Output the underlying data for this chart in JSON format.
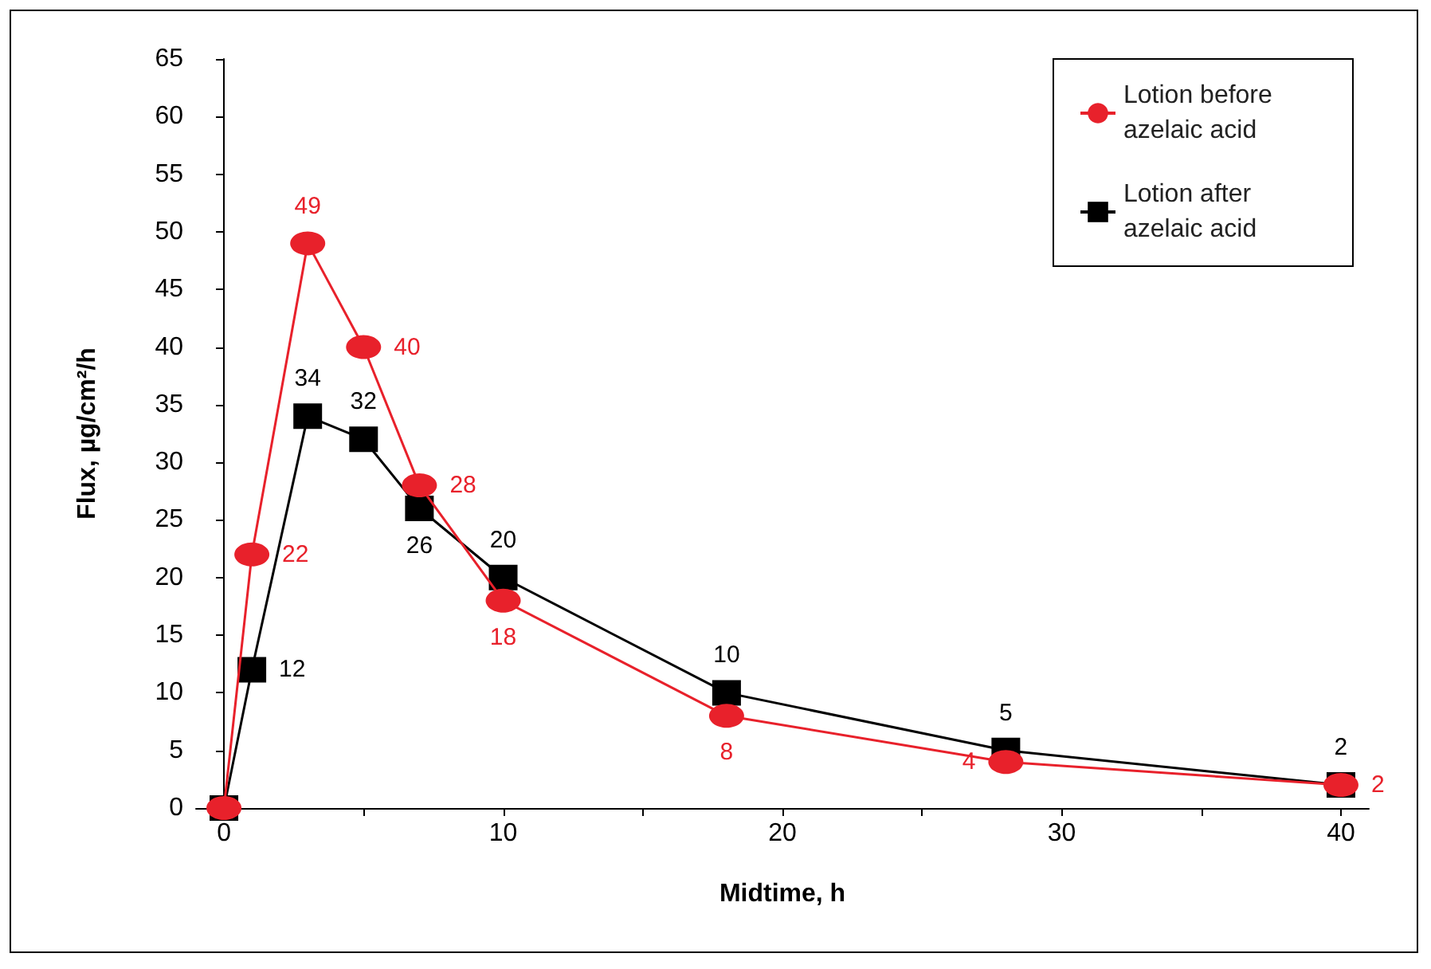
{
  "chart_data": {
    "type": "line",
    "xlabel": "Midtime, h",
    "ylabel": "Flux, µg/cm²/h",
    "xlim": [
      -1,
      41
    ],
    "xticks": [
      0,
      {
        "value": 5,
        "label": null
      },
      10,
      {
        "value": 15,
        "label": null
      },
      20,
      {
        "value": 25,
        "label": null
      },
      30,
      {
        "value": 35,
        "label": null
      },
      40
    ],
    "ylim": [
      0,
      65
    ],
    "yticks": [
      0,
      5,
      10,
      15,
      20,
      25,
      30,
      35,
      40,
      45,
      50,
      55,
      60,
      65
    ],
    "grid": false,
    "legend": "top right",
    "line_style": "solid",
    "series": [
      {
        "name": "Lotion before azelaic acid",
        "color": "#e8212b",
        "marker": "circle",
        "x": [
          0,
          1,
          3,
          5,
          7,
          10,
          18,
          28,
          40
        ],
        "values": [
          0,
          22,
          49,
          40,
          28,
          18,
          8,
          4,
          2
        ],
        "value_labels": [
          null,
          "22",
          "49",
          "40",
          "28",
          "18",
          "8",
          "4",
          "2"
        ]
      },
      {
        "name": "Lotion after azelaic acid",
        "color": "#000000",
        "marker": "square",
        "x": [
          0,
          1,
          3,
          5,
          7,
          10,
          18,
          28,
          40
        ],
        "values": [
          0,
          12,
          34,
          32,
          26,
          20,
          10,
          5,
          2
        ],
        "value_labels": [
          null,
          "12",
          "34",
          "32",
          "26",
          "20",
          "10",
          "5",
          "2"
        ]
      }
    ]
  }
}
